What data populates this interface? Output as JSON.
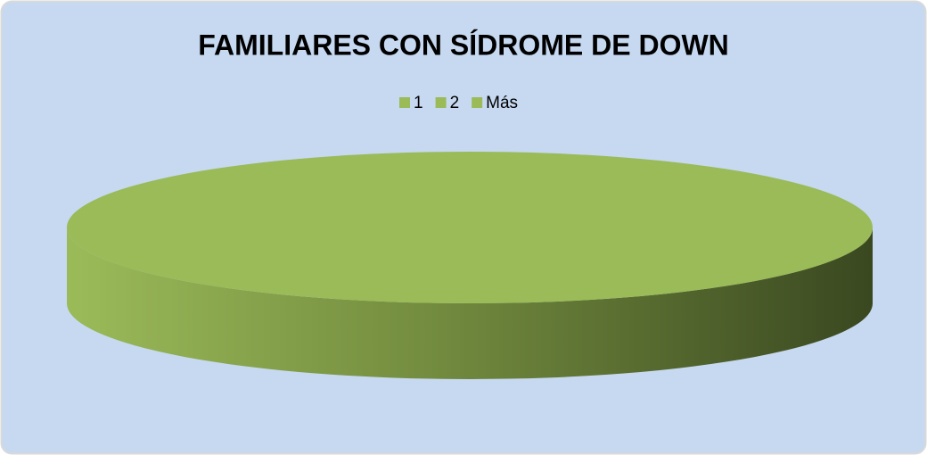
{
  "chart_data": {
    "type": "pie3d",
    "title": "FAMILIARES CON SÍDROME DE DOWN",
    "categories": [
      "1",
      "2",
      "Más"
    ],
    "values": [
      100,
      0,
      0
    ],
    "colors": [
      "#9bbb59",
      "#9bbb59",
      "#9bbb59"
    ],
    "legend": "top"
  }
}
